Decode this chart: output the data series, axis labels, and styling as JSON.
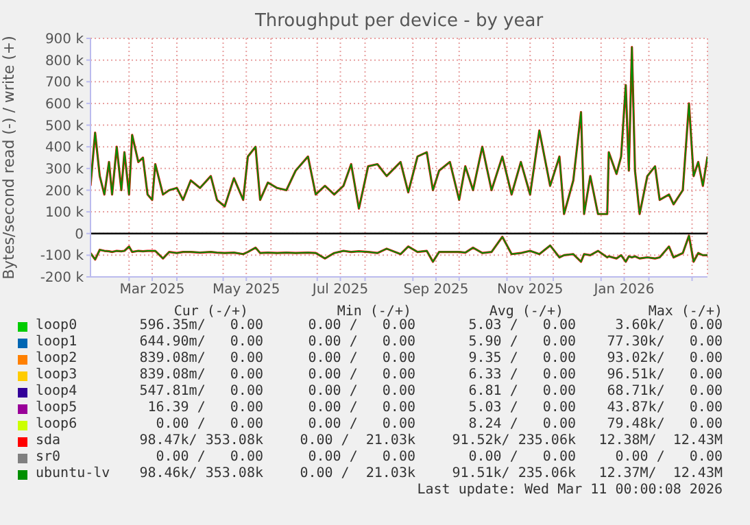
{
  "chart_data": {
    "type": "line",
    "title": "Throughput per device - by year",
    "ylabel": "Bytes/second read (-) / write (+)",
    "x": [
      "2025-02-04",
      "2025-02-07",
      "2025-02-10",
      "2025-02-13",
      "2025-02-16",
      "2025-02-18",
      "2025-02-21",
      "2025-02-24",
      "2025-02-26",
      "2025-03-01",
      "2025-03-03",
      "2025-03-07",
      "2025-03-10",
      "2025-03-13",
      "2025-03-16",
      "2025-03-18",
      "2025-03-23",
      "2025-03-27",
      "2025-04-01",
      "2025-04-05",
      "2025-04-10",
      "2025-04-16",
      "2025-04-23",
      "2025-04-27",
      "2025-05-02",
      "2025-05-08",
      "2025-05-14",
      "2025-05-17",
      "2025-05-22",
      "2025-05-25",
      "2025-05-30",
      "2025-06-05",
      "2025-06-11",
      "2025-06-17",
      "2025-06-25",
      "2025-06-30",
      "2025-07-06",
      "2025-07-12",
      "2025-07-18",
      "2025-07-23",
      "2025-07-28",
      "2025-08-03",
      "2025-08-09",
      "2025-08-15",
      "2025-08-24",
      "2025-08-29",
      "2025-09-04",
      "2025-09-10",
      "2025-09-14",
      "2025-09-18",
      "2025-09-25",
      "2025-10-01",
      "2025-10-05",
      "2025-10-10",
      "2025-10-16",
      "2025-10-22",
      "2025-10-29",
      "2025-11-04",
      "2025-11-10",
      "2025-11-16",
      "2025-11-22",
      "2025-11-29",
      "2025-12-05",
      "2025-12-08",
      "2025-12-14",
      "2025-12-19",
      "2025-12-21",
      "2025-12-25",
      "2025-12-30",
      "2026-01-05",
      "2026-01-06",
      "2026-01-11",
      "2026-01-14",
      "2026-01-17",
      "2026-01-19",
      "2026-01-21",
      "2026-01-23",
      "2026-01-26",
      "2026-01-31",
      "2026-02-05",
      "2026-02-08",
      "2026-02-14",
      "2026-02-17",
      "2026-02-23",
      "2026-02-27",
      "2026-03-02",
      "2026-03-05",
      "2026-03-08",
      "2026-03-11"
    ],
    "series": [
      {
        "name": "loop0",
        "color": "#00cc00",
        "values": [
          null,
          null,
          null,
          null,
          null,
          null,
          null,
          null,
          null,
          null,
          null,
          null,
          null,
          null,
          null,
          null,
          null,
          null,
          null,
          null,
          null,
          null,
          null,
          null,
          null,
          null,
          null,
          null,
          null,
          null,
          null,
          null,
          null,
          null,
          null,
          null,
          null,
          null,
          null,
          null,
          null,
          null,
          null,
          null,
          null,
          null,
          null,
          null,
          null,
          null,
          null,
          null,
          null,
          null,
          null,
          null,
          null,
          null,
          null,
          null,
          null,
          null,
          null,
          null,
          null,
          null,
          null,
          null,
          null,
          null,
          null,
          null,
          null,
          null,
          null,
          null,
          null,
          null,
          null,
          null,
          null,
          null,
          null,
          null,
          null,
          null,
          null,
          null,
          null
        ]
      },
      {
        "name": "loop1",
        "color": "#0066b3",
        "values": [
          null,
          null,
          null,
          null,
          null,
          null,
          null,
          null,
          null,
          null,
          null,
          null,
          null,
          null,
          null,
          null,
          null,
          null,
          null,
          null,
          null,
          null,
          null,
          null,
          null,
          null,
          null,
          null,
          null,
          null,
          null,
          null,
          null,
          null,
          null,
          null,
          null,
          null,
          null,
          null,
          null,
          null,
          null,
          null,
          null,
          null,
          null,
          null,
          null,
          null,
          null,
          null,
          null,
          null,
          null,
          null,
          null,
          null,
          null,
          null,
          null,
          null,
          null,
          null,
          null,
          null,
          null,
          null,
          null,
          null,
          null,
          null,
          null,
          null,
          null,
          null,
          null,
          null,
          null,
          null,
          null,
          null,
          null,
          null,
          null,
          null,
          null,
          null,
          null
        ]
      },
      {
        "name": "loop2",
        "color": "#ff8000",
        "values": [
          null,
          null,
          null,
          null,
          null,
          null,
          null,
          null,
          null,
          null,
          null,
          null,
          null,
          null,
          null,
          null,
          null,
          null,
          null,
          null,
          null,
          null,
          null,
          null,
          null,
          null,
          null,
          null,
          null,
          null,
          null,
          null,
          null,
          null,
          null,
          null,
          null,
          null,
          null,
          null,
          null,
          null,
          null,
          null,
          null,
          null,
          null,
          null,
          null,
          null,
          null,
          null,
          null,
          null,
          null,
          null,
          null,
          null,
          null,
          null,
          null,
          null,
          null,
          null,
          null,
          null,
          null,
          null,
          null,
          null,
          null,
          null,
          null,
          null,
          null,
          null,
          null,
          null,
          null,
          null,
          null,
          null,
          null,
          null,
          null,
          null,
          null,
          null,
          null
        ]
      },
      {
        "name": "loop3",
        "color": "#ffcc00",
        "values": [
          null,
          null,
          null,
          null,
          null,
          null,
          null,
          null,
          null,
          null,
          null,
          null,
          null,
          null,
          null,
          null,
          null,
          null,
          null,
          null,
          null,
          null,
          null,
          null,
          null,
          null,
          null,
          null,
          null,
          null,
          null,
          null,
          null,
          null,
          null,
          null,
          null,
          null,
          null,
          null,
          null,
          null,
          null,
          null,
          null,
          null,
          null,
          null,
          null,
          null,
          null,
          null,
          null,
          null,
          null,
          null,
          null,
          null,
          null,
          null,
          null,
          null,
          null,
          null,
          null,
          null,
          null,
          null,
          null,
          null,
          null,
          null,
          null,
          null,
          null,
          null,
          null,
          null,
          null,
          null,
          null,
          null,
          null,
          null,
          null,
          null,
          null,
          null,
          null
        ]
      },
      {
        "name": "loop4",
        "color": "#330099",
        "values": [
          null,
          null,
          null,
          null,
          null,
          null,
          null,
          null,
          null,
          null,
          null,
          null,
          null,
          null,
          null,
          null,
          null,
          null,
          null,
          null,
          null,
          null,
          null,
          null,
          null,
          null,
          null,
          null,
          null,
          null,
          null,
          null,
          null,
          null,
          null,
          null,
          null,
          null,
          null,
          null,
          null,
          null,
          null,
          null,
          null,
          null,
          null,
          null,
          null,
          null,
          null,
          null,
          null,
          null,
          null,
          null,
          null,
          null,
          null,
          null,
          null,
          null,
          null,
          null,
          null,
          null,
          null,
          null,
          null,
          null,
          null,
          null,
          null,
          null,
          null,
          null,
          null,
          null,
          null,
          null,
          null,
          null,
          null,
          null,
          null,
          null,
          null,
          null,
          null
        ]
      },
      {
        "name": "loop5",
        "color": "#990099",
        "values": [
          null,
          null,
          null,
          null,
          null,
          null,
          null,
          null,
          null,
          null,
          null,
          null,
          null,
          null,
          null,
          null,
          null,
          null,
          null,
          null,
          null,
          null,
          null,
          null,
          null,
          null,
          null,
          null,
          null,
          null,
          null,
          null,
          null,
          null,
          null,
          null,
          null,
          null,
          null,
          null,
          null,
          null,
          null,
          null,
          null,
          null,
          null,
          null,
          null,
          null,
          null,
          null,
          null,
          null,
          null,
          null,
          null,
          null,
          null,
          null,
          null,
          null,
          null,
          null,
          null,
          null,
          null,
          null,
          null,
          null,
          null,
          null,
          null,
          null,
          null,
          null,
          null,
          null,
          null,
          null,
          null,
          null,
          null,
          null,
          null,
          null,
          null,
          null,
          null
        ]
      },
      {
        "name": "loop6",
        "color": "#ccff00",
        "values": [
          null,
          null,
          null,
          null,
          null,
          null,
          null,
          null,
          null,
          null,
          null,
          null,
          null,
          null,
          null,
          null,
          null,
          null,
          null,
          null,
          null,
          null,
          null,
          null,
          null,
          null,
          null,
          null,
          null,
          null,
          null,
          null,
          null,
          null,
          null,
          null,
          null,
          null,
          null,
          null,
          null,
          null,
          null,
          null,
          null,
          null,
          null,
          null,
          null,
          null,
          null,
          null,
          null,
          null,
          null,
          null,
          null,
          null,
          null,
          null,
          null,
          null,
          null,
          null,
          null,
          null,
          null,
          null,
          null,
          null,
          null,
          null,
          null,
          null,
          null,
          null,
          null,
          null,
          null,
          null,
          null,
          null,
          null,
          null,
          null,
          null,
          null,
          null,
          null
        ]
      },
      {
        "name": "sda",
        "color": "#ff0000",
        "values": [
          220000,
          465000,
          265000,
          180000,
          330000,
          180000,
          400000,
          200000,
          375000,
          180000,
          455000,
          330000,
          350000,
          180000,
          155000,
          320000,
          180000,
          200000,
          210000,
          155000,
          245000,
          210000,
          265000,
          155000,
          125000,
          255000,
          155000,
          355000,
          400000,
          155000,
          235000,
          210000,
          200000,
          290000,
          355000,
          180000,
          220000,
          180000,
          220000,
          320000,
          115000,
          310000,
          320000,
          265000,
          330000,
          190000,
          355000,
          375000,
          200000,
          290000,
          330000,
          155000,
          310000,
          200000,
          400000,
          200000,
          355000,
          180000,
          330000,
          180000,
          475000,
          220000,
          355000,
          90000,
          245000,
          560000,
          90000,
          265000,
          90000,
          90000,
          375000,
          275000,
          355000,
          685000,
          290000,
          860000,
          290000,
          90000,
          265000,
          310000,
          155000,
          180000,
          135000,
          200000,
          600000,
          265000,
          330000,
          220000,
          355000
        ]
      },
      {
        "color": "#ff0000",
        "values": [
          -90000,
          -120000,
          -75000,
          -80000,
          -82000,
          -85000,
          -80000,
          -82000,
          -80000,
          -60000,
          -85000,
          -80000,
          -82000,
          -80000,
          -80000,
          -80000,
          -115000,
          -85000,
          -90000,
          -85000,
          -85000,
          -88000,
          -85000,
          -88000,
          -90000,
          -88000,
          -95000,
          -85000,
          -65000,
          -90000,
          -88000,
          -90000,
          -88000,
          -90000,
          -88000,
          -90000,
          -115000,
          -90000,
          -80000,
          -85000,
          -82000,
          -85000,
          -90000,
          -70000,
          -95000,
          -60000,
          -85000,
          -80000,
          -130000,
          -85000,
          -85000,
          -85000,
          -88000,
          -65000,
          -90000,
          -85000,
          -15000,
          -95000,
          -90000,
          -80000,
          -95000,
          -55000,
          -110000,
          -100000,
          -95000,
          -130000,
          -95000,
          -100000,
          -80000,
          -110000,
          -105000,
          -115000,
          -100000,
          -130000,
          -105000,
          -110000,
          -105000,
          -115000,
          -110000,
          -115000,
          -110000,
          -60000,
          -110000,
          -90000,
          -10000,
          -130000,
          -90000,
          -100000,
          -100000
        ]
      },
      {
        "name": "sr0",
        "color": "#808080",
        "values": [
          null,
          null,
          null,
          null,
          null,
          null,
          null,
          null,
          null,
          null,
          null,
          null,
          null,
          null,
          null,
          null,
          null,
          null,
          null,
          null,
          null,
          null,
          null,
          null,
          null,
          null,
          null,
          null,
          null,
          null,
          null,
          null,
          null,
          null,
          null,
          null,
          null,
          null,
          null,
          null,
          null,
          null,
          null,
          null,
          null,
          null,
          null,
          null,
          null,
          null,
          null,
          null,
          null,
          null,
          null,
          null,
          null,
          null,
          null,
          null,
          null,
          null,
          null,
          null,
          null,
          null,
          null,
          null,
          null,
          null,
          null,
          null,
          null,
          null,
          null,
          null,
          null,
          null,
          null,
          null,
          null,
          null,
          null,
          null,
          null,
          null,
          null,
          null,
          null
        ]
      },
      {
        "name": "ubuntu-lv",
        "color": "#008f00",
        "values": [
          220000,
          465000,
          265000,
          180000,
          330000,
          180000,
          400000,
          200000,
          375000,
          180000,
          455000,
          330000,
          350000,
          180000,
          155000,
          320000,
          180000,
          200000,
          210000,
          155000,
          245000,
          210000,
          265000,
          155000,
          125000,
          255000,
          155000,
          355000,
          400000,
          155000,
          235000,
          210000,
          200000,
          290000,
          355000,
          180000,
          220000,
          180000,
          220000,
          320000,
          115000,
          310000,
          320000,
          265000,
          330000,
          190000,
          355000,
          375000,
          200000,
          290000,
          330000,
          155000,
          310000,
          200000,
          400000,
          200000,
          355000,
          180000,
          330000,
          180000,
          475000,
          220000,
          355000,
          90000,
          245000,
          560000,
          90000,
          265000,
          90000,
          90000,
          375000,
          275000,
          355000,
          685000,
          290000,
          860000,
          290000,
          90000,
          265000,
          310000,
          155000,
          180000,
          135000,
          200000,
          600000,
          265000,
          330000,
          220000,
          355000
        ]
      },
      {
        "color": "#008f00",
        "values": [
          -90000,
          -120000,
          -75000,
          -80000,
          -82000,
          -85000,
          -80000,
          -82000,
          -80000,
          -60000,
          -85000,
          -80000,
          -82000,
          -80000,
          -80000,
          -80000,
          -115000,
          -85000,
          -90000,
          -85000,
          -85000,
          -88000,
          -85000,
          -88000,
          -90000,
          -88000,
          -95000,
          -85000,
          -65000,
          -90000,
          -88000,
          -90000,
          -88000,
          -90000,
          -88000,
          -90000,
          -115000,
          -90000,
          -80000,
          -85000,
          -82000,
          -85000,
          -90000,
          -70000,
          -95000,
          -60000,
          -85000,
          -80000,
          -130000,
          -85000,
          -85000,
          -85000,
          -88000,
          -65000,
          -90000,
          -85000,
          -15000,
          -95000,
          -90000,
          -80000,
          -95000,
          -55000,
          -110000,
          -100000,
          -95000,
          -130000,
          -95000,
          -100000,
          -80000,
          -110000,
          -105000,
          -115000,
          -100000,
          -130000,
          -105000,
          -110000,
          -105000,
          -115000,
          -110000,
          -115000,
          -110000,
          -60000,
          -110000,
          -90000,
          -10000,
          -130000,
          -90000,
          -100000,
          -100000
        ]
      }
    ],
    "xlim": [
      "2025-02-04",
      "2026-03-11"
    ],
    "xticks": [
      {
        "value": "2025-03-01",
        "label": null
      },
      {
        "value": "2025-03-16",
        "label": "Mar 2025"
      },
      {
        "value": "2025-04-01",
        "label": null
      },
      {
        "value": "2025-05-01",
        "label": null
      },
      {
        "value": "2025-05-16",
        "label": "May 2025"
      },
      {
        "value": "2025-06-01",
        "label": null
      },
      {
        "value": "2025-07-01",
        "label": null
      },
      {
        "value": "2025-07-16",
        "label": "Jul 2025"
      },
      {
        "value": "2025-08-01",
        "label": null
      },
      {
        "value": "2025-09-01",
        "label": null
      },
      {
        "value": "2025-09-16",
        "label": "Sep 2025"
      },
      {
        "value": "2025-10-01",
        "label": null
      },
      {
        "value": "2025-11-01",
        "label": null
      },
      {
        "value": "2025-11-16",
        "label": "Nov 2025"
      },
      {
        "value": "2025-12-01",
        "label": null
      },
      {
        "value": "2026-01-01",
        "label": null
      },
      {
        "value": "2026-01-16",
        "label": "Jan 2026"
      },
      {
        "value": "2026-02-01",
        "label": null
      },
      {
        "value": "2026-03-01",
        "label": null
      }
    ],
    "ylim": [
      -200000,
      900000
    ],
    "yticks": [
      {
        "value": -200000,
        "label": "-200 k"
      },
      {
        "value": -100000,
        "label": "-100 k"
      },
      0,
      {
        "value": 100000,
        "label": "100 k"
      },
      {
        "value": 200000,
        "label": "200 k"
      },
      {
        "value": 300000,
        "label": "300 k"
      },
      {
        "value": 400000,
        "label": "400 k"
      },
      {
        "value": 500000,
        "label": "500 k"
      },
      {
        "value": 600000,
        "label": "600 k"
      },
      {
        "value": 700000,
        "label": "700 k"
      },
      {
        "value": 800000,
        "label": "800 k"
      },
      {
        "value": 900000,
        "label": "900 k"
      }
    ],
    "ref_lines": [
      {
        "axis": "y",
        "value": 0,
        "color": "#000000"
      }
    ],
    "grid": true,
    "legend": "bottom",
    "annotations": [
      "Cur (-/+)",
      "Min (-/+)",
      "Avg (-/+)",
      "Max (-/+)",
      "596.35m/   0.00",
      "0.00 /   0.00",
      "5.03 /   0.00",
      "3.60k/   0.00",
      "644.90m/   0.00",
      "0.00 /   0.00",
      "5.90 /   0.00",
      "77.30k/   0.00",
      "839.08m/   0.00",
      "0.00 /   0.00",
      "9.35 /   0.00",
      "93.02k/   0.00",
      "839.08m/   0.00",
      "0.00 /   0.00",
      "6.33 /   0.00",
      "96.51k/   0.00",
      "547.81m/   0.00",
      "0.00 /   0.00",
      "6.81 /   0.00",
      "68.71k/   0.00",
      "16.39 /   0.00",
      "0.00 /   0.00",
      "5.03 /   0.00",
      "43.87k/   0.00",
      "0.00 /   0.00",
      "0.00 /   0.00",
      "8.24 /   0.00",
      "79.48k/   0.00",
      "98.47k/ 353.08k",
      "0.00 /  21.03k",
      "91.52k/ 235.06k",
      "12.38M/  12.43M",
      "0.00 /   0.00",
      "0.00 /   0.00",
      "0.00 /   0.00",
      "0.00 /   0.00",
      "98.46k/ 353.08k",
      "0.00 /  21.03k",
      "91.51k/ 235.06k",
      "12.37M/  12.43M",
      "Last update: Wed Mar 11 00:00:08 2026"
    ]
  }
}
